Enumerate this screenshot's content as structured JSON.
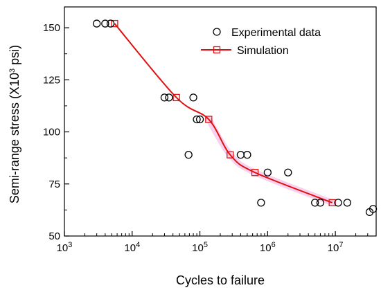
{
  "chart_data": {
    "type": "scatter",
    "xscale": "log",
    "xlim": [
      1000,
      40000000
    ],
    "ylim": [
      50,
      160
    ],
    "x_ticks": [
      1000,
      10000,
      100000,
      1000000,
      10000000
    ],
    "x_tick_labels": [
      {
        "base": "10",
        "exp": "3"
      },
      {
        "base": "10",
        "exp": "4"
      },
      {
        "base": "10",
        "exp": "5"
      },
      {
        "base": "10",
        "exp": "6"
      },
      {
        "base": "10",
        "exp": "7"
      }
    ],
    "y_ticks": [
      50,
      75,
      100,
      125,
      150
    ],
    "xlabel": "Cycles to failure",
    "ylabel": {
      "main": "Semi-range stress (X10",
      "exp": "3",
      "unit": " psi)"
    },
    "legend": {
      "placement": "top-right",
      "entries": [
        {
          "label": "Experimental data",
          "marker": "circle"
        },
        {
          "label": "Simulation",
          "marker": "square-line"
        }
      ]
    },
    "colors": {
      "experimental": "#000000",
      "simulation": "#e01010",
      "highlight": "#f6c6ea"
    },
    "series": [
      {
        "name": "Experimental data",
        "marker": "open-circle",
        "points": [
          [
            3000,
            152
          ],
          [
            4000,
            152
          ],
          [
            4800,
            152
          ],
          [
            30000,
            116.5
          ],
          [
            35000,
            116.5
          ],
          [
            80000,
            116.5
          ],
          [
            68000,
            89
          ],
          [
            90000,
            106
          ],
          [
            100000,
            106
          ],
          [
            400000,
            89
          ],
          [
            500000,
            89
          ],
          [
            1000000,
            80.5
          ],
          [
            2000000,
            80.5
          ],
          [
            800000,
            66
          ],
          [
            5000000,
            66
          ],
          [
            6000000,
            66
          ],
          [
            11000000,
            66
          ],
          [
            15000000,
            66
          ],
          [
            32000000,
            61.5
          ],
          [
            36000000,
            63
          ]
        ]
      },
      {
        "name": "Simulation",
        "marker": "open-square",
        "line": "smooth",
        "points": [
          [
            5500,
            152
          ],
          [
            45000,
            116.5
          ],
          [
            135000,
            106
          ],
          [
            280000,
            89
          ],
          [
            650000,
            80.5
          ],
          [
            9000000,
            66
          ]
        ]
      }
    ]
  }
}
